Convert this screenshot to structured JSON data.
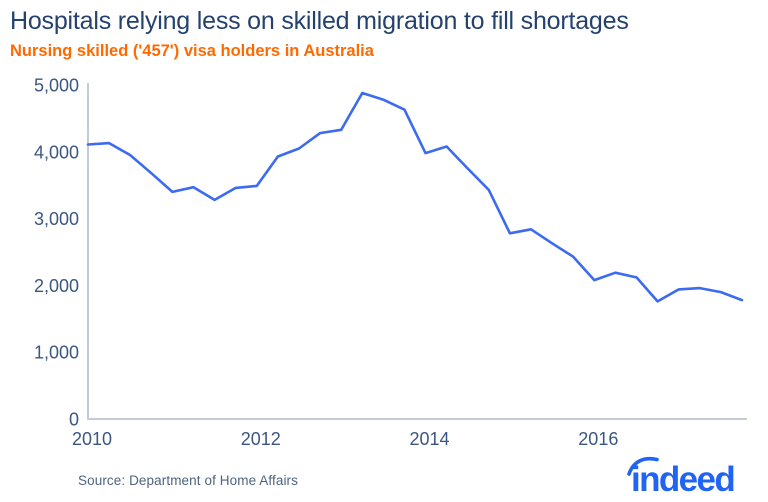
{
  "header": {
    "title": "Hospitals relying less on skilled migration to fill shortages",
    "subtitle": "Nursing skilled ('457') visa holders in Australia"
  },
  "footer": {
    "source": "Source: Department of Home Affairs",
    "logo_text": "indeed"
  },
  "colors": {
    "title": "#24426d",
    "subtitle": "#ff6a00",
    "line": "#3d6bf0",
    "axis": "#c3cbd8",
    "tick_labels": "#3b5781",
    "source": "#4d6480",
    "logo": "#2164f3"
  },
  "chart_data": {
    "type": "line",
    "title": "Hospitals relying less on skilled migration to fill shortages",
    "subtitle": "Nursing skilled ('457') visa holders in Australia",
    "source": "Source: Department of Home Affairs",
    "series_name": "Nursing skilled ('457') visa holders in Australia (quarterly)",
    "x": [
      2010.0,
      2010.25,
      2010.5,
      2010.75,
      2011.0,
      2011.25,
      2011.5,
      2011.75,
      2012.0,
      2012.25,
      2012.5,
      2012.75,
      2013.0,
      2013.25,
      2013.5,
      2013.75,
      2014.0,
      2014.25,
      2014.5,
      2014.75,
      2015.0,
      2015.25,
      2015.5,
      2015.75,
      2016.0,
      2016.25,
      2016.5,
      2016.75,
      2017.0,
      2017.25,
      2017.5,
      2017.75
    ],
    "values": [
      4110,
      4130,
      3950,
      3680,
      3400,
      3470,
      3280,
      3460,
      3490,
      3930,
      4050,
      4280,
      4330,
      4880,
      4780,
      4630,
      3980,
      4080,
      3750,
      3430,
      2780,
      2840,
      2630,
      2430,
      2080,
      2190,
      2120,
      1760,
      1940,
      1960,
      1900,
      1780
    ],
    "xticks": [
      2010,
      2012,
      2014,
      2016
    ],
    "xtick_labels": [
      "2010",
      "2012",
      "2014",
      "2016"
    ],
    "yticks": [
      0,
      1000,
      2000,
      3000,
      4000,
      5000
    ],
    "ytick_labels": [
      "0",
      "1,000",
      "2,000",
      "3,000",
      "4,000",
      "5,000"
    ],
    "ylim": [
      0,
      5000
    ],
    "xlabel": "",
    "ylabel": "",
    "grid": false,
    "legend": false
  }
}
